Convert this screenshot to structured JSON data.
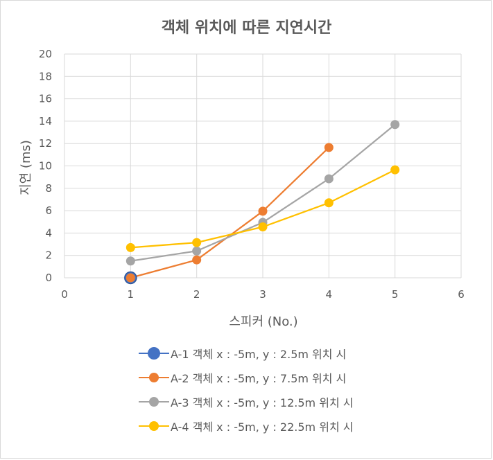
{
  "chart_data": {
    "type": "line",
    "title": "객체 위치에 따른 지연시간",
    "xlabel": "스피커 (No.)",
    "ylabel": "지연 (ms)",
    "xlim": [
      0,
      6
    ],
    "ylim": [
      0,
      20
    ],
    "x_ticks": [
      0,
      1,
      2,
      3,
      4,
      5,
      6
    ],
    "y_ticks": [
      0,
      2,
      4,
      6,
      8,
      10,
      12,
      14,
      16,
      18,
      20
    ],
    "grid": true,
    "legend_position": "bottom",
    "series": [
      {
        "name": "A-1 객체 x : -5m, y : 2.5m 위치 시",
        "color": "#4472C4",
        "x": [
          1
        ],
        "y": [
          0
        ]
      },
      {
        "name": "A-2 객체 x : -5m, y : 7.5m 위치 시",
        "color": "#ED7D31",
        "x": [
          1,
          2,
          3,
          4
        ],
        "y": [
          0,
          1.6,
          5.95,
          11.65
        ]
      },
      {
        "name": "A-3 객체 x : -5m, y : 12.5m 위치 시",
        "color": "#A5A5A5",
        "x": [
          1,
          2,
          3,
          4,
          5
        ],
        "y": [
          1.5,
          2.4,
          4.95,
          8.85,
          13.7
        ]
      },
      {
        "name": "A-4 객체 x : -5m, y : 22.5m 위치 시",
        "color": "#FFC000",
        "x": [
          1,
          2,
          3,
          4,
          5
        ],
        "y": [
          2.7,
          3.15,
          4.55,
          6.7,
          9.65
        ]
      }
    ]
  }
}
